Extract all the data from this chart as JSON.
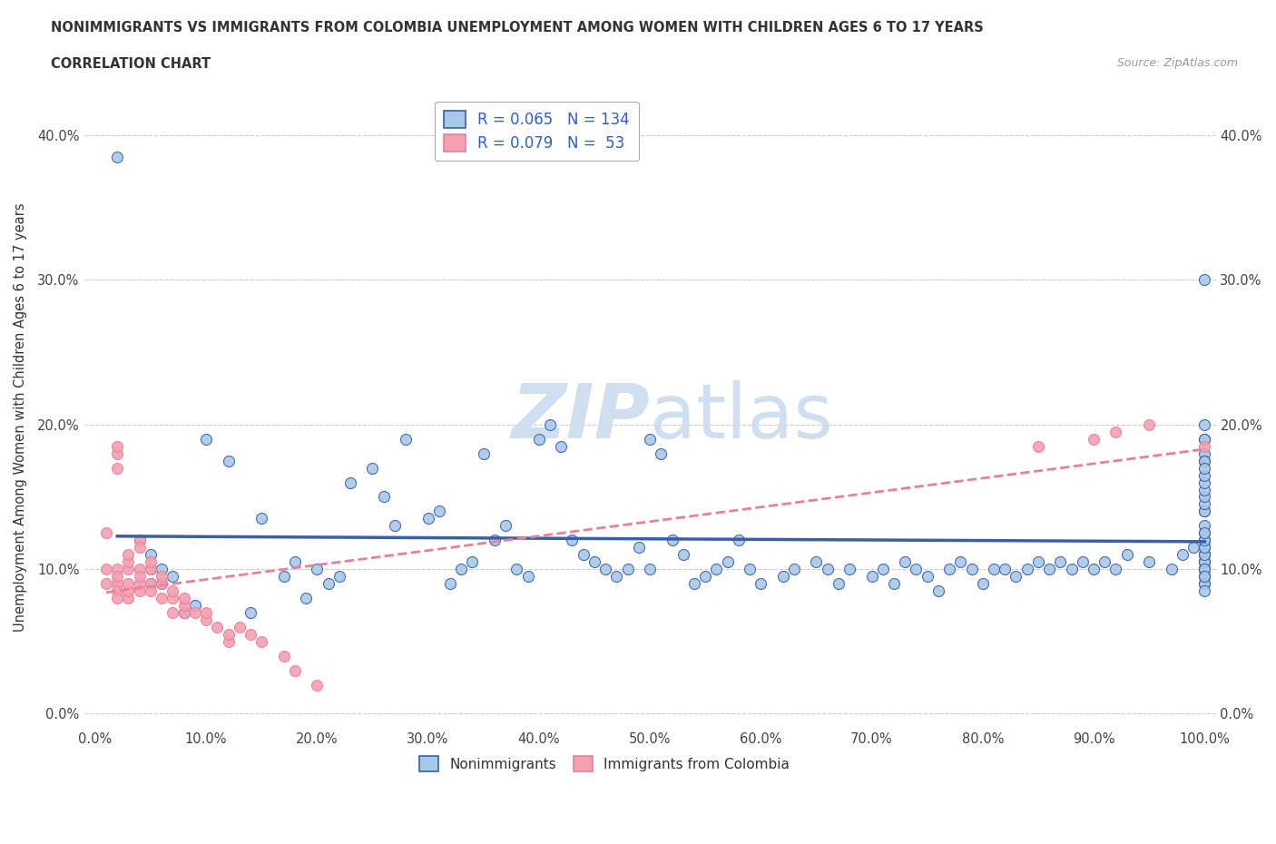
{
  "title_line1": "NONIMMIGRANTS VS IMMIGRANTS FROM COLOMBIA UNEMPLOYMENT AMONG WOMEN WITH CHILDREN AGES 6 TO 17 YEARS",
  "title_line2": "CORRELATION CHART",
  "source_text": "Source: ZipAtlas.com",
  "ylabel": "Unemployment Among Women with Children Ages 6 to 17 years",
  "xlim": [
    0,
    1.0
  ],
  "ylim": [
    -0.01,
    0.42
  ],
  "xtick_labels": [
    "0.0%",
    "10.0%",
    "20.0%",
    "30.0%",
    "40.0%",
    "50.0%",
    "60.0%",
    "70.0%",
    "80.0%",
    "90.0%",
    "100.0%"
  ],
  "xtick_values": [
    0.0,
    0.1,
    0.2,
    0.3,
    0.4,
    0.5,
    0.6,
    0.7,
    0.8,
    0.9,
    1.0
  ],
  "ytick_labels": [
    "0.0%",
    "10.0%",
    "20.0%",
    "30.0%",
    "40.0%"
  ],
  "ytick_values": [
    0.0,
    0.1,
    0.2,
    0.3,
    0.4
  ],
  "nonimm_R": 0.065,
  "nonimm_N": 134,
  "imm_R": 0.079,
  "imm_N": 53,
  "nonimm_color": "#a8c8e8",
  "imm_color": "#f4a0b0",
  "nonimm_line_color": "#3a5faa",
  "imm_line_color": "#e8809a",
  "legend_text_color": "#3060c0",
  "watermark_color": "#d0dff0",
  "background_color": "#ffffff",
  "nonimm_scatter_x": [
    0.02,
    0.04,
    0.05,
    0.05,
    0.05,
    0.06,
    0.06,
    0.07,
    0.08,
    0.09,
    0.1,
    0.12,
    0.14,
    0.15,
    0.17,
    0.18,
    0.19,
    0.2,
    0.21,
    0.22,
    0.23,
    0.25,
    0.26,
    0.27,
    0.28,
    0.3,
    0.31,
    0.32,
    0.33,
    0.34,
    0.35,
    0.36,
    0.37,
    0.38,
    0.39,
    0.4,
    0.41,
    0.42,
    0.43,
    0.44,
    0.45,
    0.46,
    0.47,
    0.48,
    0.49,
    0.5,
    0.5,
    0.51,
    0.52,
    0.53,
    0.54,
    0.55,
    0.56,
    0.57,
    0.58,
    0.59,
    0.6,
    0.62,
    0.63,
    0.65,
    0.66,
    0.67,
    0.68,
    0.7,
    0.71,
    0.72,
    0.73,
    0.74,
    0.75,
    0.76,
    0.77,
    0.78,
    0.79,
    0.8,
    0.81,
    0.82,
    0.83,
    0.84,
    0.85,
    0.86,
    0.87,
    0.88,
    0.89,
    0.9,
    0.91,
    0.92,
    0.93,
    0.95,
    0.97,
    0.98,
    0.99,
    1.0,
    1.0,
    1.0,
    1.0,
    1.0,
    1.0,
    1.0,
    1.0,
    1.0,
    1.0,
    1.0,
    1.0,
    1.0,
    1.0,
    1.0,
    1.0,
    1.0,
    1.0,
    1.0,
    1.0,
    1.0,
    1.0,
    1.0,
    1.0,
    1.0,
    1.0,
    1.0,
    1.0,
    1.0,
    1.0,
    1.0,
    1.0,
    1.0,
    1.0,
    1.0,
    1.0,
    1.0,
    1.0,
    1.0,
    1.0,
    1.0,
    1.0,
    1.0
  ],
  "nonimm_scatter_y": [
    0.385,
    0.12,
    0.1,
    0.11,
    0.09,
    0.09,
    0.1,
    0.095,
    0.07,
    0.075,
    0.19,
    0.175,
    0.07,
    0.135,
    0.095,
    0.105,
    0.08,
    0.1,
    0.09,
    0.095,
    0.16,
    0.17,
    0.15,
    0.13,
    0.19,
    0.135,
    0.14,
    0.09,
    0.1,
    0.105,
    0.18,
    0.12,
    0.13,
    0.1,
    0.095,
    0.19,
    0.2,
    0.185,
    0.12,
    0.11,
    0.105,
    0.1,
    0.095,
    0.1,
    0.115,
    0.1,
    0.19,
    0.18,
    0.12,
    0.11,
    0.09,
    0.095,
    0.1,
    0.105,
    0.12,
    0.1,
    0.09,
    0.095,
    0.1,
    0.105,
    0.1,
    0.09,
    0.1,
    0.095,
    0.1,
    0.09,
    0.105,
    0.1,
    0.095,
    0.085,
    0.1,
    0.105,
    0.1,
    0.09,
    0.1,
    0.1,
    0.095,
    0.1,
    0.105,
    0.1,
    0.105,
    0.1,
    0.105,
    0.1,
    0.105,
    0.1,
    0.11,
    0.105,
    0.1,
    0.11,
    0.115,
    0.19,
    0.18,
    0.175,
    0.14,
    0.3,
    0.175,
    0.19,
    0.2,
    0.105,
    0.11,
    0.115,
    0.12,
    0.125,
    0.13,
    0.14,
    0.145,
    0.15,
    0.155,
    0.16,
    0.165,
    0.17,
    0.1,
    0.105,
    0.11,
    0.095,
    0.09,
    0.1,
    0.105,
    0.11,
    0.115,
    0.12,
    0.1,
    0.095,
    0.09,
    0.085,
    0.1,
    0.105,
    0.11,
    0.115,
    0.12,
    0.125,
    0.1,
    0.095
  ],
  "imm_scatter_x": [
    0.01,
    0.01,
    0.01,
    0.02,
    0.02,
    0.02,
    0.02,
    0.02,
    0.02,
    0.02,
    0.02,
    0.03,
    0.03,
    0.03,
    0.03,
    0.03,
    0.03,
    0.04,
    0.04,
    0.04,
    0.04,
    0.04,
    0.04,
    0.05,
    0.05,
    0.05,
    0.05,
    0.06,
    0.06,
    0.06,
    0.07,
    0.07,
    0.07,
    0.08,
    0.08,
    0.08,
    0.09,
    0.1,
    0.1,
    0.11,
    0.12,
    0.12,
    0.13,
    0.14,
    0.15,
    0.17,
    0.18,
    0.2,
    0.85,
    0.9,
    0.92,
    0.95,
    1.0
  ],
  "imm_scatter_y": [
    0.125,
    0.09,
    0.1,
    0.17,
    0.18,
    0.185,
    0.1,
    0.09,
    0.085,
    0.08,
    0.095,
    0.1,
    0.105,
    0.11,
    0.08,
    0.085,
    0.09,
    0.12,
    0.115,
    0.1,
    0.09,
    0.085,
    0.095,
    0.1,
    0.105,
    0.09,
    0.085,
    0.08,
    0.09,
    0.095,
    0.07,
    0.08,
    0.085,
    0.07,
    0.075,
    0.08,
    0.07,
    0.065,
    0.07,
    0.06,
    0.05,
    0.055,
    0.06,
    0.055,
    0.05,
    0.04,
    0.03,
    0.02,
    0.185,
    0.19,
    0.195,
    0.2,
    0.185
  ]
}
